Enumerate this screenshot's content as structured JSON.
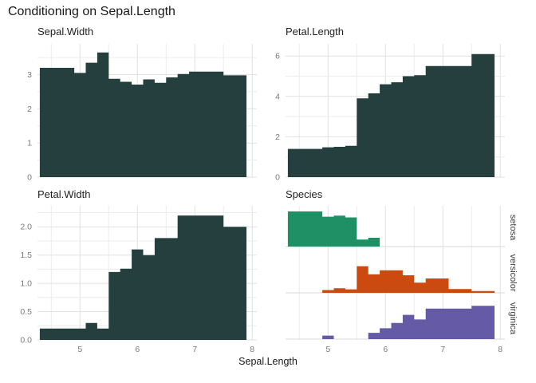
{
  "title": "Conditioning on Sepal.Length",
  "x_axis": {
    "label": "Sepal.Length",
    "tick_values": [
      5,
      6,
      7,
      8
    ],
    "tick_labels": [
      "5",
      "6",
      "7",
      "8"
    ],
    "minor_grid": [
      4.5,
      5.5,
      6.5,
      7.5
    ],
    "range": [
      4.26,
      8.08
    ]
  },
  "colors": {
    "histogram": "#243f3e",
    "setosa": "#1f8f66",
    "versicolor": "#cc4a0f",
    "virginica": "#655aa6",
    "grid_major": "#e1e1e1",
    "grid_minor": "#ececec",
    "ridge_baseline": "#d8d8d8",
    "tick_text": "#7a7a7a",
    "title_text": "#1a1a1a",
    "strip_text": "#3f3f3f"
  },
  "chart_data": {
    "type": "area",
    "subtype": "step-binned small multiples conditioned on Sepal.Length (iris)",
    "grid": "on",
    "bins": {
      "start": 4.3,
      "width": 0.2,
      "count": 18,
      "x_range": [
        4.3,
        7.9
      ]
    },
    "panels": [
      {
        "id": "sepal-width",
        "title": "Sepal.Width",
        "ylim": [
          0,
          3.9
        ],
        "grid_step": 0.5,
        "ytick_values": [
          0,
          1,
          2,
          3
        ],
        "ytick_labels": [
          "0",
          "1",
          "2",
          "3"
        ],
        "values": [
          3.2,
          3.2,
          3.2,
          3.05,
          3.35,
          3.65,
          2.88,
          2.79,
          2.71,
          2.86,
          2.76,
          2.92,
          3.02,
          3.09,
          3.09,
          3.09,
          2.98,
          2.98
        ]
      },
      {
        "id": "petal-length",
        "title": "Petal.Length",
        "ylim": [
          0,
          6.6
        ],
        "grid_step": 1,
        "ytick_values": [
          0,
          2,
          4,
          6
        ],
        "ytick_labels": [
          "0",
          "2",
          "4",
          "6"
        ],
        "values": [
          1.4,
          1.4,
          1.4,
          1.48,
          1.5,
          1.55,
          3.9,
          4.15,
          4.6,
          4.7,
          5.0,
          5.05,
          5.5,
          5.5,
          5.5,
          5.5,
          6.1,
          6.1
        ]
      },
      {
        "id": "petal-width",
        "title": "Petal.Width",
        "ylim": [
          0,
          2.37
        ],
        "grid_step": 0.25,
        "ytick_values": [
          0,
          0.5,
          1,
          1.5,
          2
        ],
        "ytick_labels": [
          "0.0",
          "0.5",
          "1.0",
          "1.5",
          "2.0"
        ],
        "values": [
          0.2,
          0.2,
          0.2,
          0.2,
          0.3,
          0.2,
          1.2,
          1.26,
          1.6,
          1.5,
          1.8,
          1.8,
          2.2,
          2.2,
          2.2,
          2.2,
          2.0,
          2.0
        ]
      },
      {
        "id": "species",
        "title": "Species",
        "series": [
          {
            "name": "setosa",
            "color_key": "setosa",
            "values": [
              1,
              1,
              1,
              0.85,
              0.88,
              0.83,
              0.2,
              0.25,
              0,
              0,
              0,
              0,
              0,
              0,
              0,
              0,
              0,
              0
            ]
          },
          {
            "name": "versicolor",
            "color_key": "versicolor",
            "values": [
              0,
              0,
              0,
              0.08,
              0.13,
              0.1,
              0.76,
              0.53,
              0.64,
              0.64,
              0.5,
              0.29,
              0.41,
              0.41,
              0.11,
              0.11,
              0.05,
              0.05
            ]
          },
          {
            "name": "virginica",
            "color_key": "virginica",
            "values": [
              0,
              0,
              0,
              0.1,
              0,
              0,
              0,
              0.18,
              0.31,
              0.46,
              0.69,
              0.56,
              0.87,
              0.87,
              0.87,
              0.87,
              0.95,
              0.95
            ]
          }
        ]
      }
    ]
  }
}
